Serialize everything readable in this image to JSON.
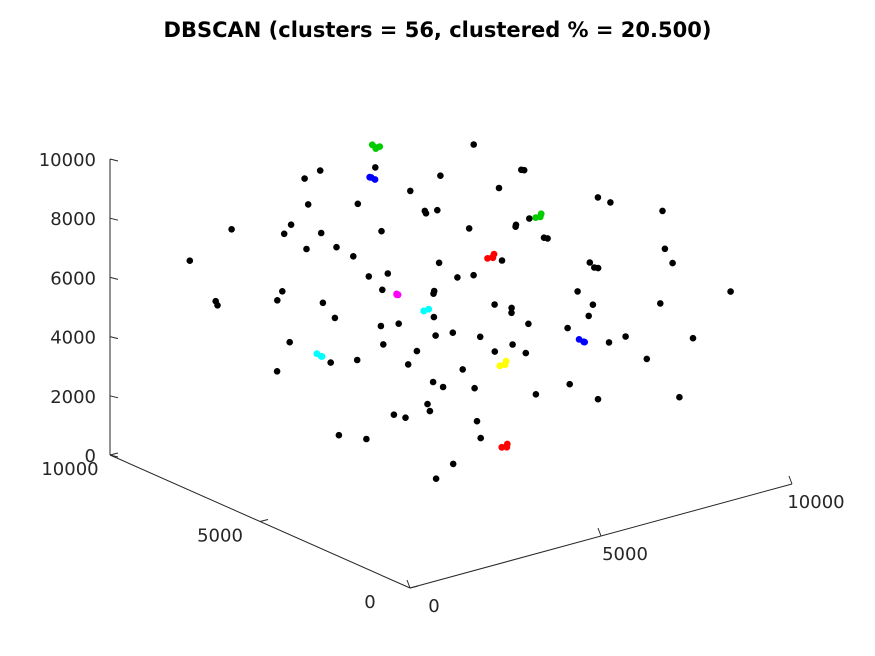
{
  "chart_data": {
    "type": "scatter",
    "dimensions": 3,
    "title": "DBSCAN (clusters = 56, clustered % = 20.500)",
    "xlabel": "",
    "ylabel": "",
    "zlabel": "",
    "xlim": [
      0,
      10000
    ],
    "ylim": [
      0,
      10000
    ],
    "zlim": [
      0,
      10000
    ],
    "x_ticks": [
      "0",
      "5000",
      "10000"
    ],
    "y_ticks": [
      "0",
      "5000",
      "10000"
    ],
    "z_ticks": [
      "0",
      "2000",
      "4000",
      "6000",
      "8000",
      "10000"
    ],
    "grid": false,
    "legend": "none",
    "colors": {
      "noise": "#000000",
      "cluster_palette": [
        "#ff0000",
        "#00cc00",
        "#0000ff",
        "#00ffff",
        "#ff00ff",
        "#ffff00"
      ]
    },
    "series": [
      {
        "group": "noise",
        "values": [
          [
            8012,
            4615,
            5133
          ],
          [
            1093,
            2131,
            9282
          ],
          [
            6839,
            7738,
            5107
          ],
          [
            6373,
            9004,
            1946
          ],
          [
            9567,
            9215,
            6013
          ],
          [
            2503,
            5829,
            4116
          ],
          [
            5045,
            8163,
            7541
          ],
          [
            2770,
            2863,
            3716
          ],
          [
            7339,
            7919,
            2487
          ],
          [
            4004,
            8002,
            4632
          ],
          [
            6209,
            4372,
            8124
          ],
          [
            3412,
            2905,
            1689
          ],
          [
            1591,
            1172,
            7440
          ],
          [
            9020,
            6231,
            2811
          ],
          [
            5630,
            3308,
            4472
          ],
          [
            7855,
            1660,
            6108
          ],
          [
            3140,
            7510,
            9354
          ],
          [
            4877,
            5402,
            5893
          ],
          [
            8626,
            3091,
            3321
          ],
          [
            1827,
            8744,
            4979
          ],
          [
            5992,
            6615,
            8853
          ],
          [
            2240,
            1983,
            2016
          ],
          [
            7104,
            5527,
            7227
          ],
          [
            4251,
            9376,
            6566
          ],
          [
            9351,
            2473,
            4044
          ],
          [
            3688,
            4112,
            3071
          ],
          [
            6654,
            1287,
            5582
          ],
          [
            1414,
            6058,
            6805
          ],
          [
            8309,
            8457,
            8265
          ],
          [
            2976,
            3560,
            5357
          ],
          [
            5231,
            2194,
            9010
          ],
          [
            7612,
            6873,
            3814
          ],
          [
            1955,
            4860,
            2291
          ],
          [
            9707,
            5680,
            7063
          ],
          [
            4450,
            1471,
            4318
          ],
          [
            6087,
            9641,
            4737
          ],
          [
            2354,
            7192,
            7906
          ],
          [
            8467,
            1802,
            2660
          ],
          [
            3875,
            6307,
            6332
          ],
          [
            5506,
            4779,
            1552
          ],
          [
            7960,
            3872,
            8661
          ],
          [
            1232,
            3329,
            5775
          ],
          [
            6491,
            5925,
            3543
          ],
          [
            4629,
            8889,
            8481
          ],
          [
            9164,
            7083,
            5408
          ],
          [
            2656,
            2612,
            4853
          ],
          [
            7261,
            2975,
            6921
          ],
          [
            3337,
            5198,
            8547
          ],
          [
            5808,
            7456,
            2163
          ],
          [
            8766,
            5064,
            4217
          ],
          [
            1707,
            9513,
            6182
          ],
          [
            4143,
            3697,
            7376
          ],
          [
            6953,
            8320,
            6479
          ],
          [
            2897,
            1331,
            3447
          ],
          [
            9430,
            3590,
            7815
          ],
          [
            5361,
            6031,
            4558
          ],
          [
            7498,
            4223,
            2354
          ],
          [
            2119,
            5657,
            8706
          ],
          [
            6520,
            2310,
            7669
          ],
          [
            3590,
            8581,
            3187
          ],
          [
            8204,
            6470,
            6694
          ],
          [
            1509,
            2071,
            4291
          ],
          [
            4775,
            7003,
            5249
          ],
          [
            6781,
            4925,
            9533
          ],
          [
            3040,
            4408,
            2805
          ],
          [
            9608,
            1547,
            5942
          ],
          [
            5134,
            3150,
            6245
          ],
          [
            2539,
            9180,
            7103
          ],
          [
            7715,
            7704,
            4396
          ],
          [
            4394,
            2529,
            8383
          ],
          [
            8956,
            4770,
            3008
          ],
          [
            1876,
            6820,
            3599
          ],
          [
            6122,
            8952,
            8037
          ],
          [
            3750,
            3019,
            4710
          ],
          [
            5691,
            5272,
            7780
          ],
          [
            8418,
            2223,
            7502
          ],
          [
            2218,
            3795,
            6366
          ],
          [
            7062,
            6167,
            2735
          ],
          [
            4966,
            9775,
            5317
          ],
          [
            9279,
            8010,
            7254
          ],
          [
            3236,
            6623,
            5012
          ],
          [
            6425,
            1913,
            3261
          ],
          [
            1650,
            4552,
            8890
          ],
          [
            5453,
            7320,
            3725
          ],
          [
            8095,
            9399,
            5696
          ],
          [
            2792,
            5009,
            1803
          ],
          [
            7387,
            3449,
            5047
          ],
          [
            4033,
            1715,
            6040
          ],
          [
            9819,
            6361,
            4521
          ],
          [
            3506,
            7858,
            8196
          ],
          [
            6289,
            4061,
            4890
          ],
          [
            1358,
            8206,
            5524
          ],
          [
            4698,
            3830,
            3377
          ],
          [
            8573,
            7533,
            2901
          ],
          [
            2482,
            2377,
            8004
          ],
          [
            7157,
            9103,
            6810
          ],
          [
            5251,
            5584,
            2436
          ],
          [
            9076,
            2802,
            6529
          ],
          [
            3955,
            9458,
            4081
          ],
          [
            6002,
            7149,
            7420
          ]
        ]
      },
      {
        "group": "clusters",
        "note": "56 clusters shown as colored groups",
        "values": [
          [
            3120,
            1210,
            9520
          ],
          [
            3180,
            1250,
            9600
          ],
          [
            3050,
            1300,
            9480
          ],
          [
            6110,
            8920,
            8690
          ],
          [
            6180,
            8880,
            8750
          ],
          [
            6050,
            8960,
            8820
          ],
          [
            5700,
            8600,
            8010
          ],
          [
            5790,
            8540,
            7930
          ],
          [
            5660,
            8500,
            8060
          ],
          [
            5400,
            6420,
            4580
          ],
          [
            5500,
            6380,
            4620
          ],
          [
            5450,
            6480,
            4530
          ],
          [
            2710,
            3890,
            7210
          ],
          [
            2790,
            3950,
            7150
          ],
          [
            2650,
            3820,
            7290
          ],
          [
            7210,
            6010,
            2310
          ],
          [
            7290,
            6080,
            2370
          ],
          [
            7150,
            6110,
            2250
          ],
          [
            4120,
            2020,
            2400
          ],
          [
            4180,
            2080,
            2460
          ],
          [
            4060,
            2110,
            2380
          ],
          [
            8610,
            6620,
            6540
          ],
          [
            8680,
            6680,
            6590
          ],
          [
            8560,
            6710,
            6490
          ],
          [
            8120,
            4550,
            3420
          ],
          [
            8190,
            4610,
            3360
          ],
          [
            8070,
            4640,
            3480
          ],
          [
            2630,
            6310,
            4070
          ],
          [
            2700,
            6370,
            4010
          ],
          [
            2590,
            6400,
            4130
          ]
        ]
      }
    ]
  }
}
